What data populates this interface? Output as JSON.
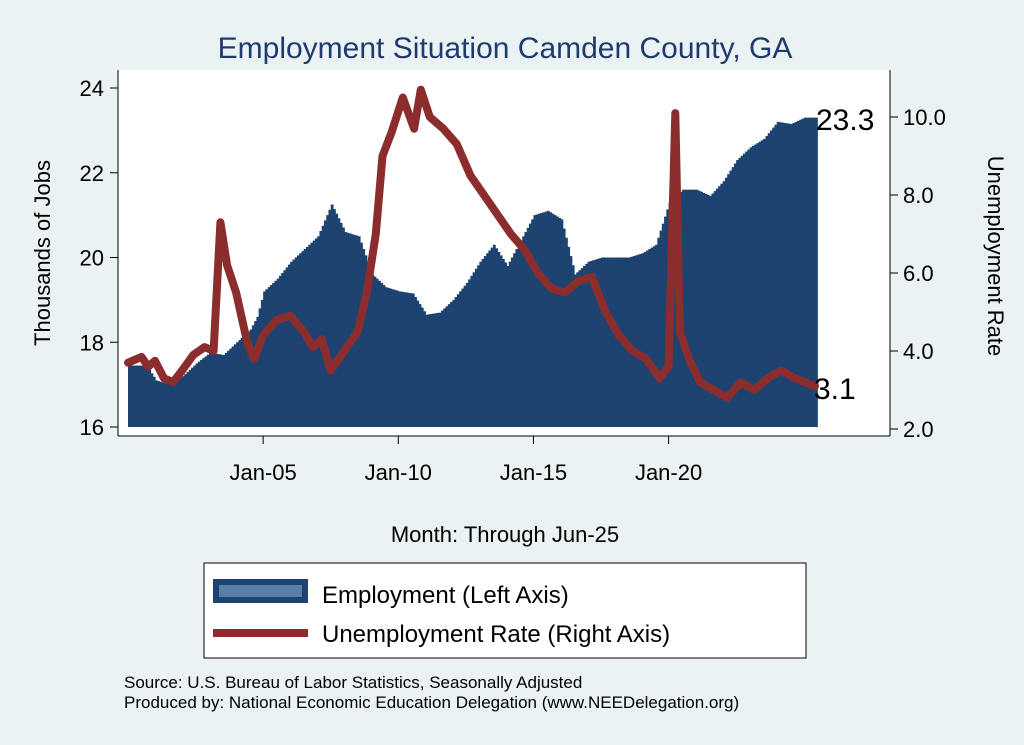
{
  "chart_data": {
    "type": "bar+line",
    "title": "Employment Situation Camden  County, GA",
    "xlabel": "Month: Through Jun-25",
    "ylabel_left": "Thousands of Jobs",
    "ylabel_right": "Unemployment Rate",
    "x_ticks": [
      "Jan-05",
      "Jan-10",
      "Jan-15",
      "Jan-20"
    ],
    "y_left_ticks": [
      "16",
      "18",
      "20",
      "22",
      "24"
    ],
    "y_right_ticks": [
      "2.0",
      "4.0",
      "6.0",
      "8.0",
      "10.0"
    ],
    "ylim_left": [
      16,
      24.4
    ],
    "ylim_right": [
      1.9,
      11.0
    ],
    "xlim": [
      "2000-01",
      "2025-06"
    ],
    "grid": false,
    "end_label_employment": "23.3",
    "end_label_unemployment": "3.1",
    "series": [
      {
        "name": "Employment (Left Axis)",
        "type": "bar",
        "color": "#1d4370",
        "points": [
          [
            "2000-01",
            17.45
          ],
          [
            "2000-07",
            17.45
          ],
          [
            "2000-10",
            17.35
          ],
          [
            "2001-01",
            17.1
          ],
          [
            "2001-07",
            17.0
          ],
          [
            "2002-01",
            17.2
          ],
          [
            "2002-07",
            17.5
          ],
          [
            "2003-01",
            17.75
          ],
          [
            "2003-07",
            17.7
          ],
          [
            "2004-01",
            18.0
          ],
          [
            "2004-07",
            18.3
          ],
          [
            "2004-10",
            18.6
          ],
          [
            "2005-01",
            19.2
          ],
          [
            "2005-07",
            19.5
          ],
          [
            "2006-01",
            19.9
          ],
          [
            "2006-07",
            20.2
          ],
          [
            "2007-01",
            20.5
          ],
          [
            "2007-07",
            21.25
          ],
          [
            "2008-01",
            20.6
          ],
          [
            "2008-07",
            20.5
          ],
          [
            "2009-01",
            19.6
          ],
          [
            "2009-07",
            19.3
          ],
          [
            "2010-01",
            19.2
          ],
          [
            "2010-07",
            19.15
          ],
          [
            "2011-01",
            18.65
          ],
          [
            "2011-07",
            18.7
          ],
          [
            "2012-01",
            19.0
          ],
          [
            "2012-07",
            19.4
          ],
          [
            "2013-01",
            19.9
          ],
          [
            "2013-07",
            20.3
          ],
          [
            "2014-01",
            19.8
          ],
          [
            "2014-07",
            20.4
          ],
          [
            "2015-01",
            21.0
          ],
          [
            "2015-07",
            21.1
          ],
          [
            "2016-01",
            20.9
          ],
          [
            "2016-07",
            19.6
          ],
          [
            "2017-01",
            19.9
          ],
          [
            "2017-07",
            20.0
          ],
          [
            "2018-01",
            20.0
          ],
          [
            "2018-07",
            20.0
          ],
          [
            "2019-01",
            20.1
          ],
          [
            "2019-07",
            20.3
          ],
          [
            "2020-01",
            21.3
          ],
          [
            "2020-07",
            21.6
          ],
          [
            "2021-01",
            21.6
          ],
          [
            "2021-07",
            21.45
          ],
          [
            "2022-01",
            21.8
          ],
          [
            "2022-07",
            22.3
          ],
          [
            "2023-01",
            22.6
          ],
          [
            "2023-07",
            22.8
          ],
          [
            "2024-01",
            23.2
          ],
          [
            "2024-07",
            23.15
          ],
          [
            "2025-01",
            23.3
          ],
          [
            "2025-06",
            23.3
          ]
        ]
      },
      {
        "name": "Unemployment Rate (Right Axis)",
        "type": "line",
        "color": "#8c2d2d",
        "points": [
          [
            "2000-01",
            3.7
          ],
          [
            "2000-07",
            3.85
          ],
          [
            "2000-10",
            3.6
          ],
          [
            "2001-01",
            3.75
          ],
          [
            "2001-05",
            3.3
          ],
          [
            "2001-09",
            3.2
          ],
          [
            "2002-01",
            3.5
          ],
          [
            "2002-06",
            3.9
          ],
          [
            "2002-11",
            4.1
          ],
          [
            "2003-03",
            4.0
          ],
          [
            "2003-06",
            7.3
          ],
          [
            "2003-09",
            6.2
          ],
          [
            "2004-01",
            5.5
          ],
          [
            "2004-06",
            4.2
          ],
          [
            "2004-09",
            3.8
          ],
          [
            "2005-01",
            4.4
          ],
          [
            "2005-07",
            4.8
          ],
          [
            "2006-01",
            4.9
          ],
          [
            "2006-07",
            4.5
          ],
          [
            "2006-11",
            4.1
          ],
          [
            "2007-03",
            4.3
          ],
          [
            "2007-07",
            3.5
          ],
          [
            "2008-01",
            4.0
          ],
          [
            "2008-07",
            4.5
          ],
          [
            "2008-11",
            5.5
          ],
          [
            "2009-03",
            7.0
          ],
          [
            "2009-06",
            9.0
          ],
          [
            "2009-10",
            9.6
          ],
          [
            "2010-03",
            10.5
          ],
          [
            "2010-08",
            9.7
          ],
          [
            "2010-11",
            10.7
          ],
          [
            "2011-03",
            10.0
          ],
          [
            "2011-09",
            9.7
          ],
          [
            "2012-03",
            9.3
          ],
          [
            "2012-09",
            8.5
          ],
          [
            "2013-03",
            8.0
          ],
          [
            "2013-09",
            7.5
          ],
          [
            "2014-03",
            7.0
          ],
          [
            "2014-09",
            6.6
          ],
          [
            "2015-03",
            6.0
          ],
          [
            "2015-09",
            5.6
          ],
          [
            "2016-03",
            5.5
          ],
          [
            "2016-09",
            5.8
          ],
          [
            "2017-03",
            5.9
          ],
          [
            "2017-09",
            5.0
          ],
          [
            "2018-03",
            4.4
          ],
          [
            "2018-09",
            4.0
          ],
          [
            "2019-03",
            3.8
          ],
          [
            "2019-09",
            3.3
          ],
          [
            "2020-01",
            3.6
          ],
          [
            "2020-04",
            10.1
          ],
          [
            "2020-06",
            4.5
          ],
          [
            "2020-10",
            3.8
          ],
          [
            "2021-03",
            3.2
          ],
          [
            "2021-09",
            3.0
          ],
          [
            "2022-03",
            2.8
          ],
          [
            "2022-09",
            3.2
          ],
          [
            "2023-03",
            3.0
          ],
          [
            "2023-09",
            3.3
          ],
          [
            "2024-03",
            3.5
          ],
          [
            "2024-09",
            3.3
          ],
          [
            "2025-06",
            3.1
          ]
        ]
      }
    ],
    "legend": {
      "placement": "bottom",
      "entries": [
        "Employment (Left Axis)",
        "Unemployment Rate (Right Axis)"
      ]
    },
    "notes": [
      "Source: U.S. Bureau of Labor Statistics, Seasonally Adjusted",
      "Produced by: National Economic Education Delegation (www.NEEDelegation.org)"
    ]
  }
}
